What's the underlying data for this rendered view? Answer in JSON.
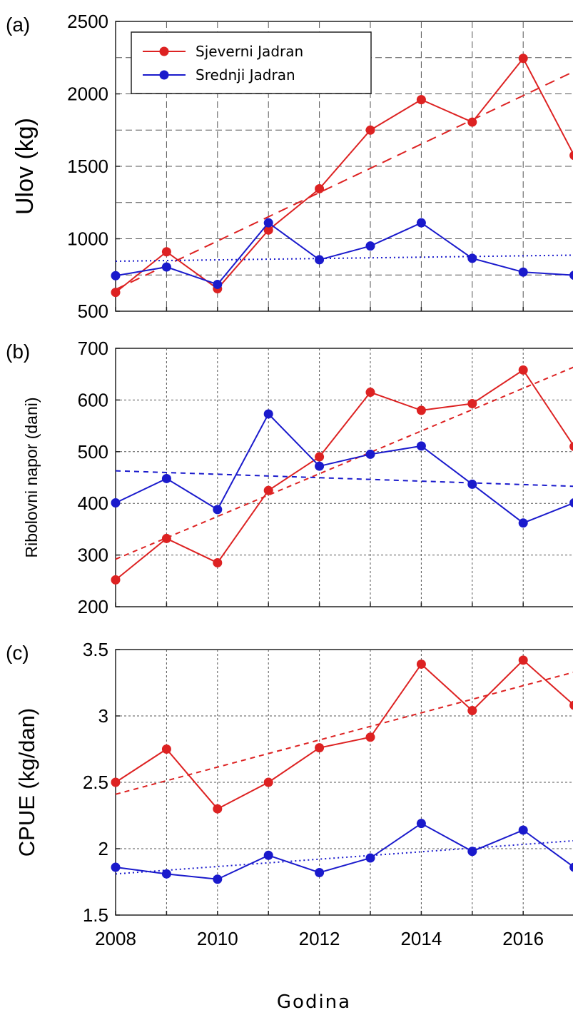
{
  "chart_data": [
    {
      "type": "line",
      "panel_label": "(a)",
      "ylabel": "Ulov (kg)",
      "ylim": [
        500,
        2500
      ],
      "y_ticks": [
        "500",
        "1000",
        "1500",
        "2000",
        "2500"
      ],
      "xlim": [
        2008,
        2017
      ],
      "x_ticks": [],
      "grid": true,
      "grid_style": "dashed",
      "legend_position": "top-left",
      "series": [
        {
          "name": "Sjeverni Jadran",
          "color": "#dd2222",
          "x": [
            2008,
            2009,
            2010,
            2011,
            2012,
            2013,
            2014,
            2015,
            2016,
            2017
          ],
          "values": [
            630,
            910,
            655,
            1060,
            1345,
            1750,
            1960,
            1805,
            2245,
            1575
          ],
          "trend": [
            650,
            2155
          ],
          "trend_style": "dashed"
        },
        {
          "name": "Srednji Jadran",
          "color": "#1a1acc",
          "x": [
            2008,
            2009,
            2010,
            2011,
            2012,
            2013,
            2014,
            2015,
            2016,
            2017
          ],
          "values": [
            745,
            805,
            685,
            1110,
            855,
            950,
            1110,
            865,
            770,
            748
          ],
          "trend": [
            845,
            887
          ],
          "trend_style": "dotted"
        }
      ]
    },
    {
      "type": "line",
      "panel_label": "(b)",
      "ylabel": "Ribolovni napor (dani)",
      "ylim": [
        200,
        700
      ],
      "y_ticks": [
        "200",
        "300",
        "400",
        "500",
        "600",
        "700"
      ],
      "xlim": [
        2008,
        2017
      ],
      "x_ticks": [],
      "grid": true,
      "grid_style": "dotted",
      "series": [
        {
          "color": "#dd2222",
          "x": [
            2008,
            2009,
            2010,
            2011,
            2012,
            2013,
            2014,
            2015,
            2016,
            2017
          ],
          "values": [
            252,
            332,
            285,
            425,
            490,
            615,
            580,
            593,
            658,
            510
          ],
          "trend": [
            292,
            664
          ],
          "trend_style": "dashed"
        },
        {
          "color": "#1a1acc",
          "x": [
            2008,
            2009,
            2010,
            2011,
            2012,
            2013,
            2014,
            2015,
            2016,
            2017
          ],
          "values": [
            401,
            448,
            388,
            573,
            472,
            495,
            511,
            437,
            362,
            401
          ],
          "trend": [
            463,
            433
          ],
          "trend_style": "dashed"
        }
      ]
    },
    {
      "type": "line",
      "panel_label": "(c)",
      "ylabel": "CPUE (kg/dan)",
      "ylim": [
        1.5,
        3.5
      ],
      "y_ticks": [
        "1.5",
        "2",
        "2.5",
        "3",
        "3.5"
      ],
      "xlim": [
        2008,
        2017
      ],
      "x_ticks": [
        "2008",
        "2010",
        "2012",
        "2014",
        "2016"
      ],
      "xlabel": "Godina",
      "grid": true,
      "grid_style": "dotted",
      "series": [
        {
          "color": "#dd2222",
          "x": [
            2008,
            2009,
            2010,
            2011,
            2012,
            2013,
            2014,
            2015,
            2016,
            2017
          ],
          "values": [
            2.5,
            2.75,
            2.3,
            2.5,
            2.76,
            2.84,
            3.39,
            3.04,
            3.42,
            3.08
          ],
          "trend": [
            2.41,
            3.33
          ],
          "trend_style": "dashed"
        },
        {
          "color": "#1a1acc",
          "x": [
            2008,
            2009,
            2010,
            2011,
            2012,
            2013,
            2014,
            2015,
            2016,
            2017
          ],
          "values": [
            1.86,
            1.81,
            1.77,
            1.95,
            1.82,
            1.93,
            2.19,
            1.98,
            2.14,
            1.86
          ],
          "trend": [
            1.81,
            2.06
          ],
          "trend_style": "dotted"
        }
      ]
    }
  ]
}
